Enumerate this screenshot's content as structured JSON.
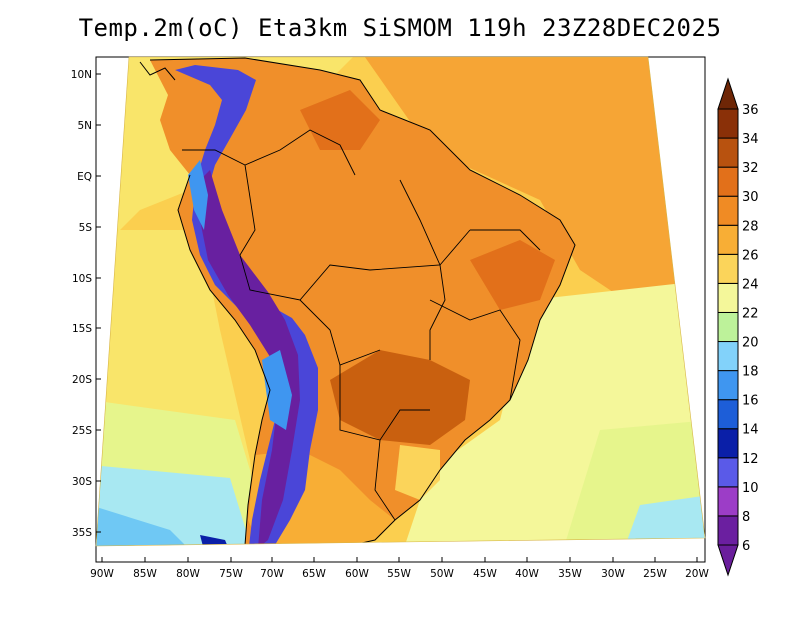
{
  "title": "Temp.2m(oC) Eta3km SiSMOM 119h 23Z28DEC2025",
  "map": {
    "variable": "2 m temperature",
    "units": "oC",
    "model": "Eta3km SiSMOM",
    "forecast_hour": "119h",
    "valid_time": "23Z28DEC2025",
    "lat_labels": [
      "10N",
      "5N",
      "EQ",
      "5S",
      "10S",
      "15S",
      "20S",
      "25S",
      "30S",
      "35S"
    ],
    "lon_labels": [
      "90W",
      "85W",
      "80W",
      "75W",
      "70W",
      "65W",
      "60W",
      "55W",
      "50W",
      "45W",
      "40W",
      "35W",
      "30W",
      "25W",
      "20W"
    ]
  },
  "colorbar": {
    "levels": [
      "6",
      "8",
      "10",
      "12",
      "14",
      "16",
      "18",
      "20",
      "22",
      "24",
      "26",
      "28",
      "30",
      "32",
      "34",
      "36"
    ],
    "colors": [
      "#6b1fa0",
      "#9c3dc7",
      "#5a5ae8",
      "#0a1fa8",
      "#1d5ed8",
      "#3f96f0",
      "#82d2fa",
      "#bdf29a",
      "#f4f79a",
      "#fbd45a",
      "#f8ae35",
      "#f08b24",
      "#e2701a",
      "#b8520f",
      "#8a3008"
    ],
    "under_color": "#6a1e9c",
    "over_color": "#6e2606"
  },
  "palette": {
    "ocean_warm": "#fbcf4f",
    "ocean_mid": "#f9e56a",
    "ocean_cool": "#e6f58c",
    "ocean_cold": "#a8e8f2",
    "ocean_colder": "#6fc8f4",
    "land_hot": "#f08f2a",
    "land_very_hot": "#c9600f",
    "andes": "#4a46d8",
    "andes_core": "#6820a0"
  }
}
